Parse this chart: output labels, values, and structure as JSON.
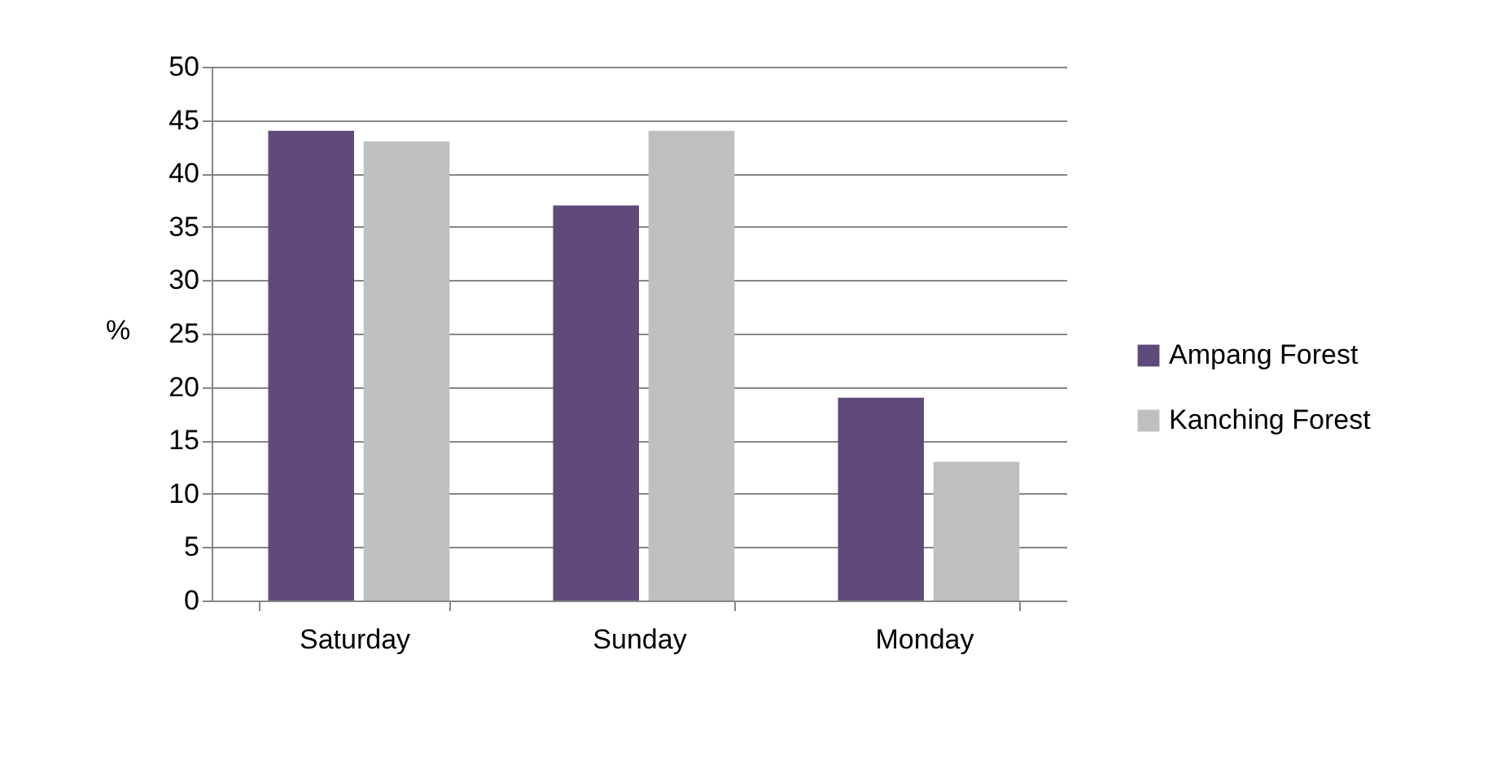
{
  "chart_data": {
    "type": "bar",
    "ylabel": "%",
    "categories": [
      "Saturday",
      "Sunday",
      "Monday"
    ],
    "series": [
      {
        "name": "Ampang Forest",
        "color": "#604a7b",
        "values": [
          44,
          37,
          19
        ]
      },
      {
        "name": "Kanching Forest",
        "color": "#bfbfbf",
        "values": [
          43,
          44,
          13
        ]
      }
    ],
    "ylim": [
      0,
      50
    ],
    "yticks": [
      0,
      5,
      10,
      15,
      20,
      25,
      30,
      35,
      40,
      45,
      50
    ],
    "grid": "y",
    "legend": "right"
  }
}
